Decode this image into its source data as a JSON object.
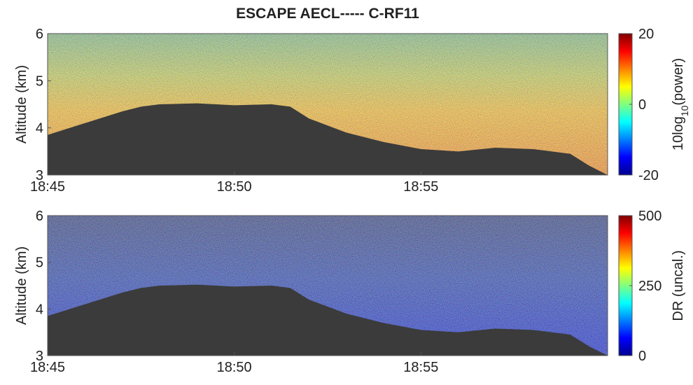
{
  "title": "ESCAPE AECL----- C-RF11",
  "chart_data": [
    {
      "type": "heatmap",
      "ylabel": "Altitude (km)",
      "ylim": [
        3,
        6
      ],
      "yticks": [
        3,
        4,
        5,
        6
      ],
      "xlim": [
        1125,
        1140
      ],
      "xticks": [
        {
          "value": 1125,
          "label": "18:45"
        },
        {
          "value": 1130,
          "label": "18:50"
        },
        {
          "value": 1135,
          "label": "18:55"
        }
      ],
      "colormap": "jet",
      "colorbar": {
        "label": [
          "10log",
          "10",
          "(power)"
        ],
        "clim": [
          -20,
          20
        ],
        "ticks": [
          -20,
          0,
          20
        ]
      },
      "terrain": {
        "x": [
          1125,
          1126,
          1127,
          1127.5,
          1128,
          1129,
          1130,
          1131,
          1131.5,
          1132,
          1133,
          1134,
          1135,
          1136,
          1137,
          1138,
          1139,
          1139.5,
          1140
        ],
        "altitude": [
          3.85,
          4.1,
          4.35,
          4.45,
          4.5,
          4.52,
          4.48,
          4.5,
          4.45,
          4.2,
          3.9,
          3.7,
          3.55,
          3.5,
          3.58,
          3.55,
          3.45,
          3.2,
          3.0
        ]
      },
      "terrain_color": "#3b3b3b"
    },
    {
      "type": "heatmap",
      "ylabel": "Altitude (km)",
      "ylim": [
        3,
        6
      ],
      "yticks": [
        3,
        4,
        5,
        6
      ],
      "xlim": [
        1125,
        1140
      ],
      "xticks": [
        {
          "value": 1125,
          "label": "18:45"
        },
        {
          "value": 1130,
          "label": "18:50"
        },
        {
          "value": 1135,
          "label": "18:55"
        }
      ],
      "colormap": "jet",
      "colorbar": {
        "label": [
          "DR (uncal.)"
        ],
        "clim": [
          0,
          500
        ],
        "ticks": [
          0,
          250,
          500
        ]
      },
      "terrain": {
        "x": [
          1125,
          1126,
          1127,
          1127.5,
          1128,
          1129,
          1130,
          1131,
          1131.5,
          1132,
          1133,
          1134,
          1135,
          1136,
          1137,
          1138,
          1139,
          1139.5,
          1140
        ],
        "altitude": [
          3.85,
          4.1,
          4.35,
          4.45,
          4.5,
          4.52,
          4.48,
          4.5,
          4.45,
          4.2,
          3.9,
          3.7,
          3.55,
          3.5,
          3.58,
          3.55,
          3.45,
          3.2,
          3.0
        ]
      },
      "terrain_color": "#3b3b3b"
    }
  ]
}
